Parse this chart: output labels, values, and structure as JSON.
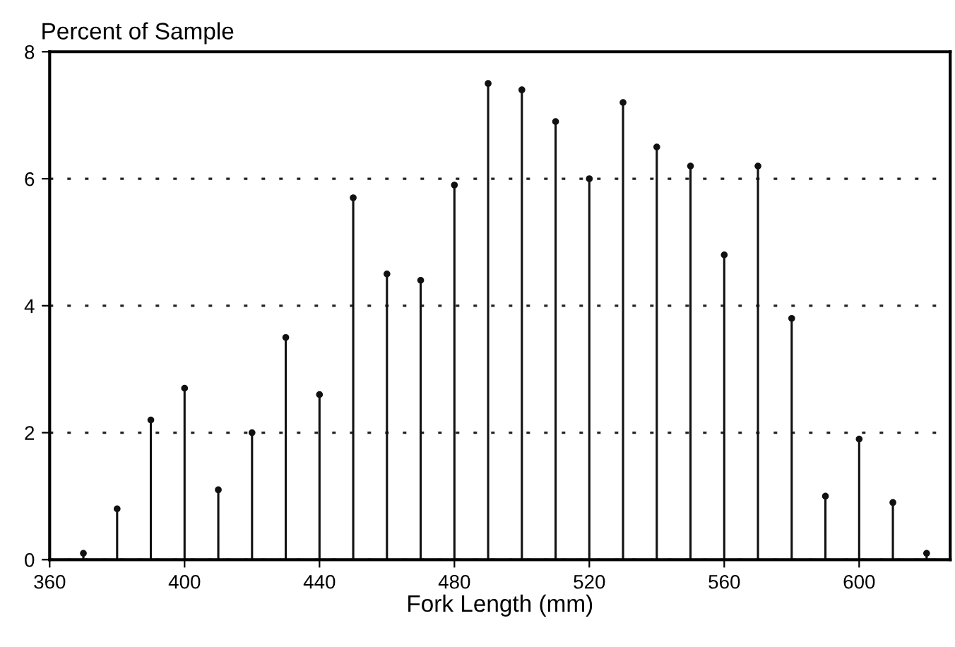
{
  "chart_data": {
    "type": "lollipop",
    "ylabel": "Percent of Sample",
    "xlabel": "Fork Length (mm)",
    "x": [
      370,
      380,
      390,
      400,
      410,
      420,
      430,
      440,
      450,
      460,
      470,
      480,
      490,
      500,
      510,
      520,
      530,
      540,
      550,
      560,
      570,
      580,
      590,
      600,
      610,
      620
    ],
    "values": [
      0.1,
      0.8,
      2.2,
      2.7,
      1.1,
      2.0,
      3.5,
      2.6,
      5.7,
      4.5,
      4.4,
      5.9,
      7.5,
      7.4,
      6.9,
      6.0,
      7.2,
      6.5,
      6.2,
      4.8,
      6.2,
      3.8,
      1.0,
      1.9,
      0.9,
      0.1
    ],
    "color": "#111111",
    "marker": "circle",
    "xlim": [
      360,
      627
    ],
    "xticks": [
      360,
      400,
      440,
      480,
      520,
      560,
      600
    ],
    "ylim": [
      0,
      8
    ],
    "yticks": [
      0,
      2,
      4,
      6,
      8
    ],
    "grid": "y"
  }
}
